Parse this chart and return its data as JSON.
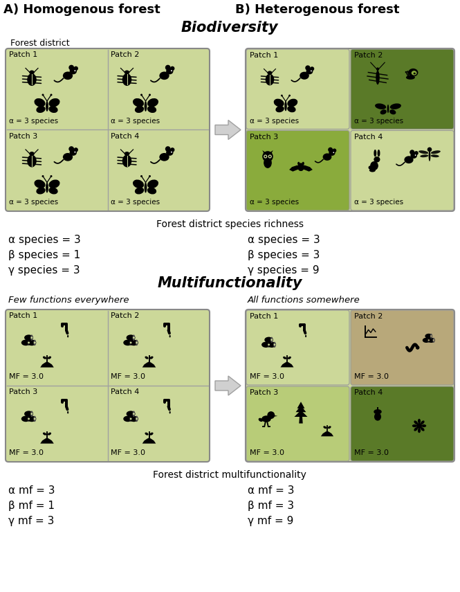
{
  "title_A": "A) Homogenous forest",
  "title_B": "B) Heterogenous forest",
  "section1_title": "Biodiversity",
  "section2_title": "Multifunctionality",
  "forest_district_label": "Forest district",
  "subsection_A_multi": "Few functions everywhere",
  "subsection_B_multi": "All functions somewhere",
  "footer1": "Forest district species richness",
  "footer2": "Forest district multifunctionality",
  "homogenous_bio_stats": [
    "α species = 3",
    "β species = 1",
    "γ species = 3"
  ],
  "heterogenous_bio_stats": [
    "α species = 3",
    "β species = 3",
    "γ species = 9"
  ],
  "homogenous_mf_stats": [
    "α mf = 3",
    "β mf = 1",
    "γ mf = 3"
  ],
  "heterogenous_mf_stats": [
    "α mf = 3",
    "β mf = 3",
    "γ mf = 9"
  ],
  "patch_label_alpha": "α = 3 species",
  "patch_label_mf": "MF = 3.0",
  "light_green": "#ccd899",
  "light_green2": "#b8cc78",
  "medium_green": "#8aab3c",
  "dark_green": "#5a7a28",
  "tan_color": "#b8a87a",
  "tan_light": "#c8b890",
  "border_color": "#888888",
  "divider_color": "#a0a0a0",
  "bg_color": "#ffffff",
  "arrow_color": "#b0b0b0",
  "text_dark": "#000000",
  "patch_names": [
    "Patch 1",
    "Patch 2",
    "Patch 3",
    "Patch 4"
  ]
}
